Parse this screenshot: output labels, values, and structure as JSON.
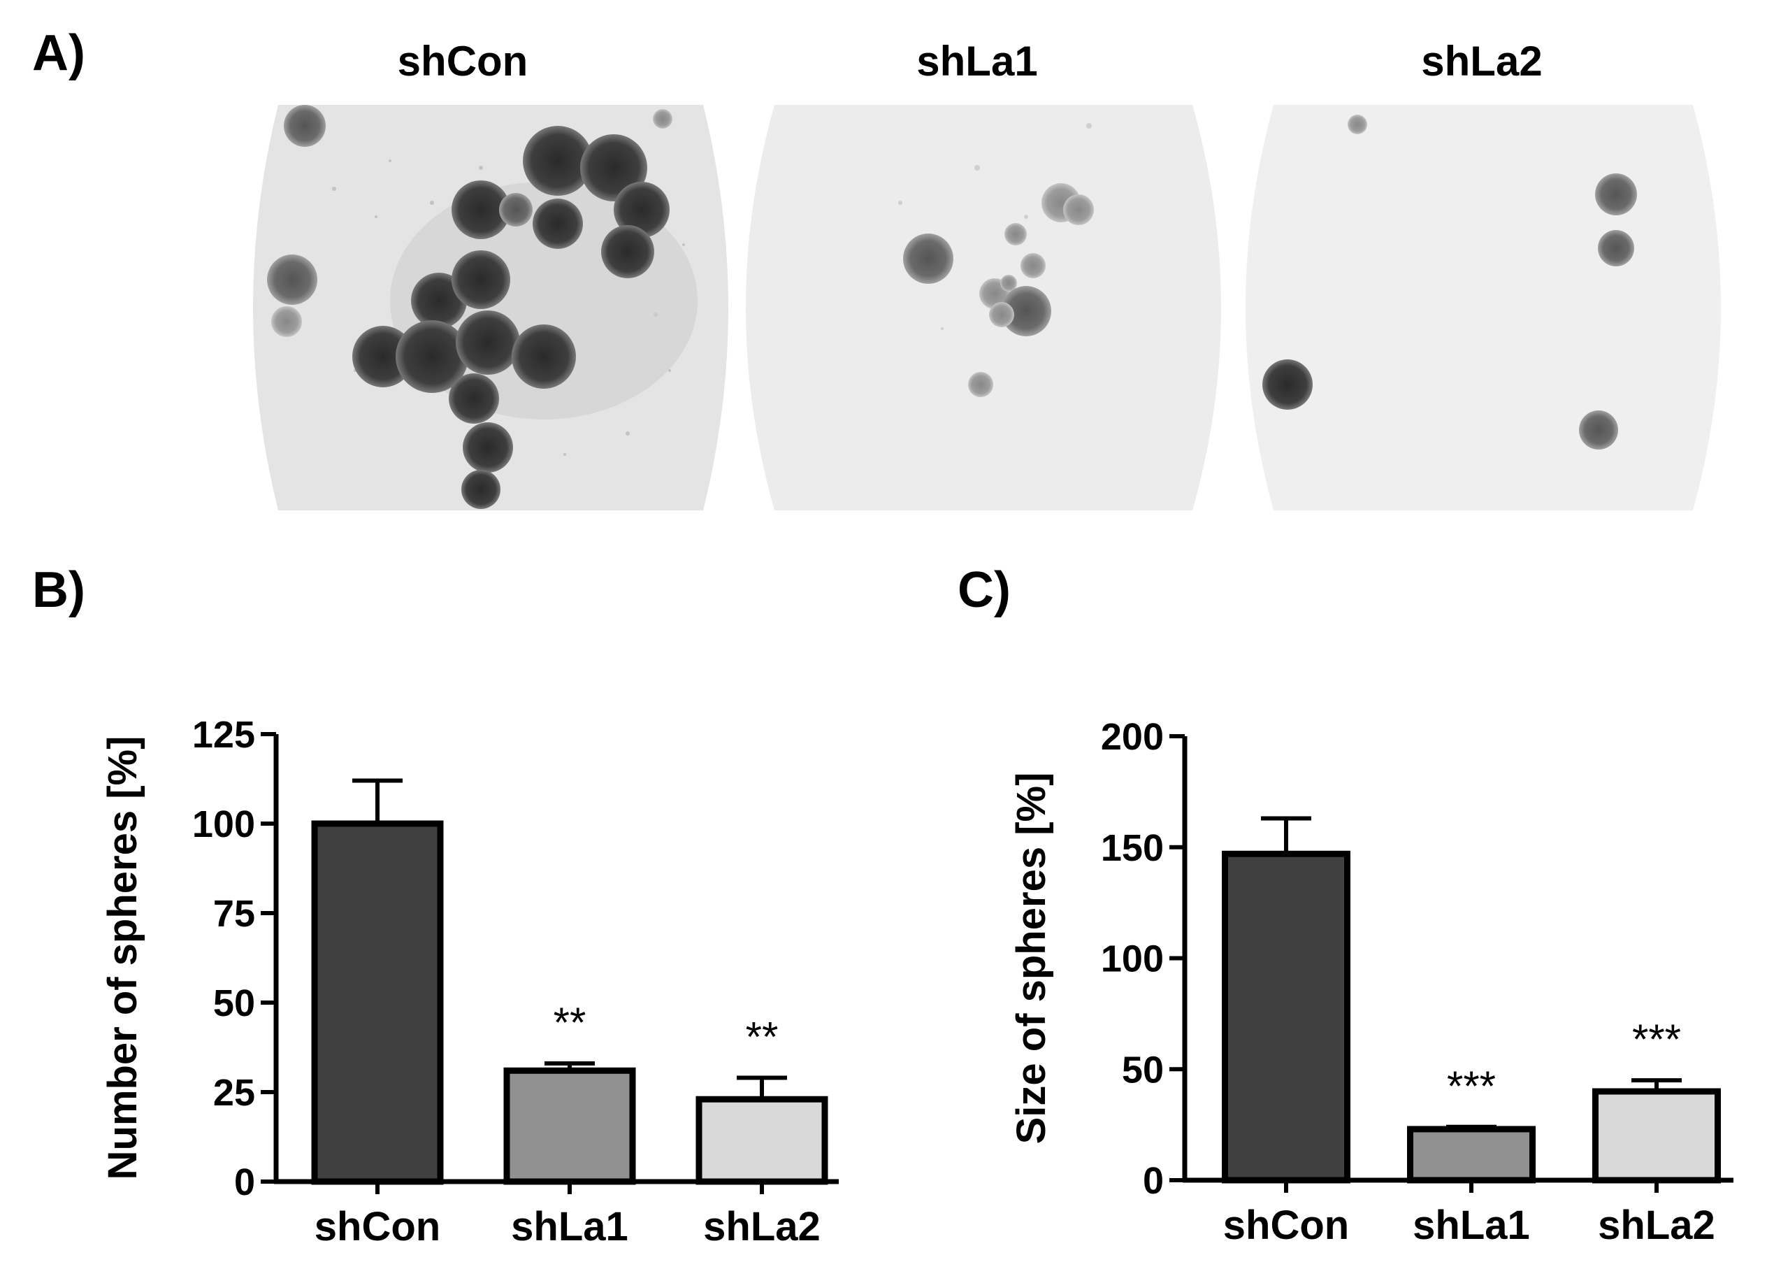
{
  "panels": {
    "a": {
      "letter": "A)"
    },
    "b": {
      "letter": "B)"
    },
    "c": {
      "letter": "C)"
    }
  },
  "micrographs": [
    {
      "title": "shCon"
    },
    {
      "title": "shLa1"
    },
    {
      "title": "shLa2"
    }
  ],
  "colors": {
    "shCon": "#404040",
    "shLa1": "#919191",
    "shLa2": "#d9d9d9",
    "axis": "#000000"
  },
  "chart_data": [
    {
      "type": "bar",
      "categories": [
        "shCon",
        "shLa1",
        "shLa2"
      ],
      "values": [
        100,
        31,
        23
      ],
      "errors": [
        12,
        2,
        6
      ],
      "significance": [
        "",
        "**",
        "**"
      ],
      "ylabel": "Number of spheres [%]",
      "xlabel": "",
      "ylim": [
        0,
        125
      ],
      "yticks": [
        0,
        25,
        50,
        75,
        100,
        125
      ],
      "grid": false
    },
    {
      "type": "bar",
      "categories": [
        "shCon",
        "shLa1",
        "shLa2"
      ],
      "values": [
        147,
        23,
        40
      ],
      "errors": [
        16,
        1,
        5
      ],
      "significance": [
        "",
        "***",
        "***"
      ],
      "ylabel": "Size of spheres [%]",
      "xlabel": "",
      "ylim": [
        0,
        200
      ],
      "yticks": [
        0,
        50,
        100,
        150,
        200
      ],
      "grid": false
    }
  ]
}
